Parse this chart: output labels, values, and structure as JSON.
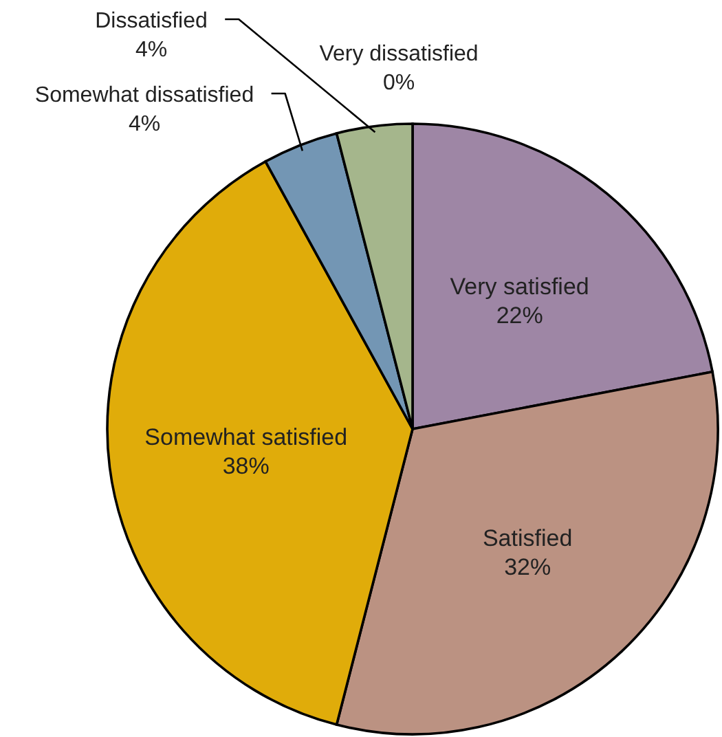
{
  "chart_data": {
    "type": "pie",
    "categories": [
      "Very satisfied",
      "Satisfied",
      "Somewhat satisfied",
      "Somewhat dissatisfied",
      "Dissatisfied",
      "Very dissatisfied"
    ],
    "values": [
      22,
      32,
      38,
      4,
      4,
      0
    ],
    "colors": [
      "#9e86a5",
      "#bb9282",
      "#e0ac0a",
      "#7396b4",
      "#a5b68c",
      "#c9a0a0"
    ],
    "value_labels": [
      "22%",
      "32%",
      "38%",
      "4%",
      "4%",
      "0%"
    ]
  }
}
